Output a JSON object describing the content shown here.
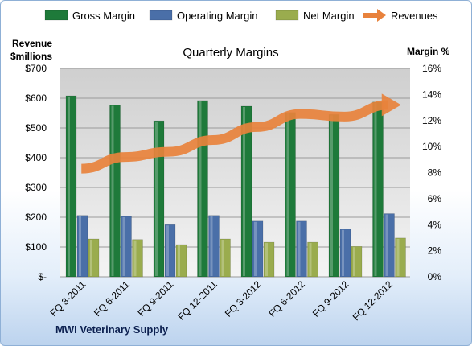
{
  "chart_data": {
    "type": "bar",
    "title": "Quarterly Margins",
    "categories": [
      "FQ 3-2011",
      "FQ 6-2011",
      "FQ 9-2011",
      "FQ 12-2011",
      "FQ 3-2012",
      "FQ 6-2012",
      "FQ 9-2012",
      "FQ 12-2012"
    ],
    "series": [
      {
        "name": "Gross Margin",
        "axis": "left",
        "color": "#1e7a3a",
        "values": [
          608,
          577,
          524,
          592,
          573,
          552,
          545,
          587
        ]
      },
      {
        "name": "Operating Margin",
        "axis": "left",
        "color": "#4a6fa8",
        "values": [
          206,
          203,
          175,
          206,
          187,
          187,
          160,
          212
        ]
      },
      {
        "name": "Net Margin",
        "axis": "left",
        "color": "#9aac4e",
        "values": [
          127,
          125,
          108,
          127,
          116,
          116,
          102,
          130
        ]
      },
      {
        "name": "Revenues",
        "axis": "right",
        "type": "line",
        "color": "#e8823c",
        "values": [
          8.3,
          9.2,
          9.6,
          10.5,
          11.5,
          12.5,
          12.3,
          13.2
        ]
      }
    ],
    "ylabel_left": [
      "Revenue",
      "$millions"
    ],
    "ylabel_right": "Margin  %",
    "ylim_left": [
      0,
      700
    ],
    "ylim_right": [
      0,
      16
    ],
    "left_ticks": [
      "$-",
      "$100",
      "$200",
      "$300",
      "$400",
      "$500",
      "$600",
      "$700"
    ],
    "right_ticks": [
      "0%",
      "2%",
      "4%",
      "6%",
      "8%",
      "10%",
      "12%",
      "14%",
      "16%"
    ],
    "legend_position": "top",
    "grid": true
  },
  "footer": {
    "company": "MWI Veterinary Supply"
  }
}
